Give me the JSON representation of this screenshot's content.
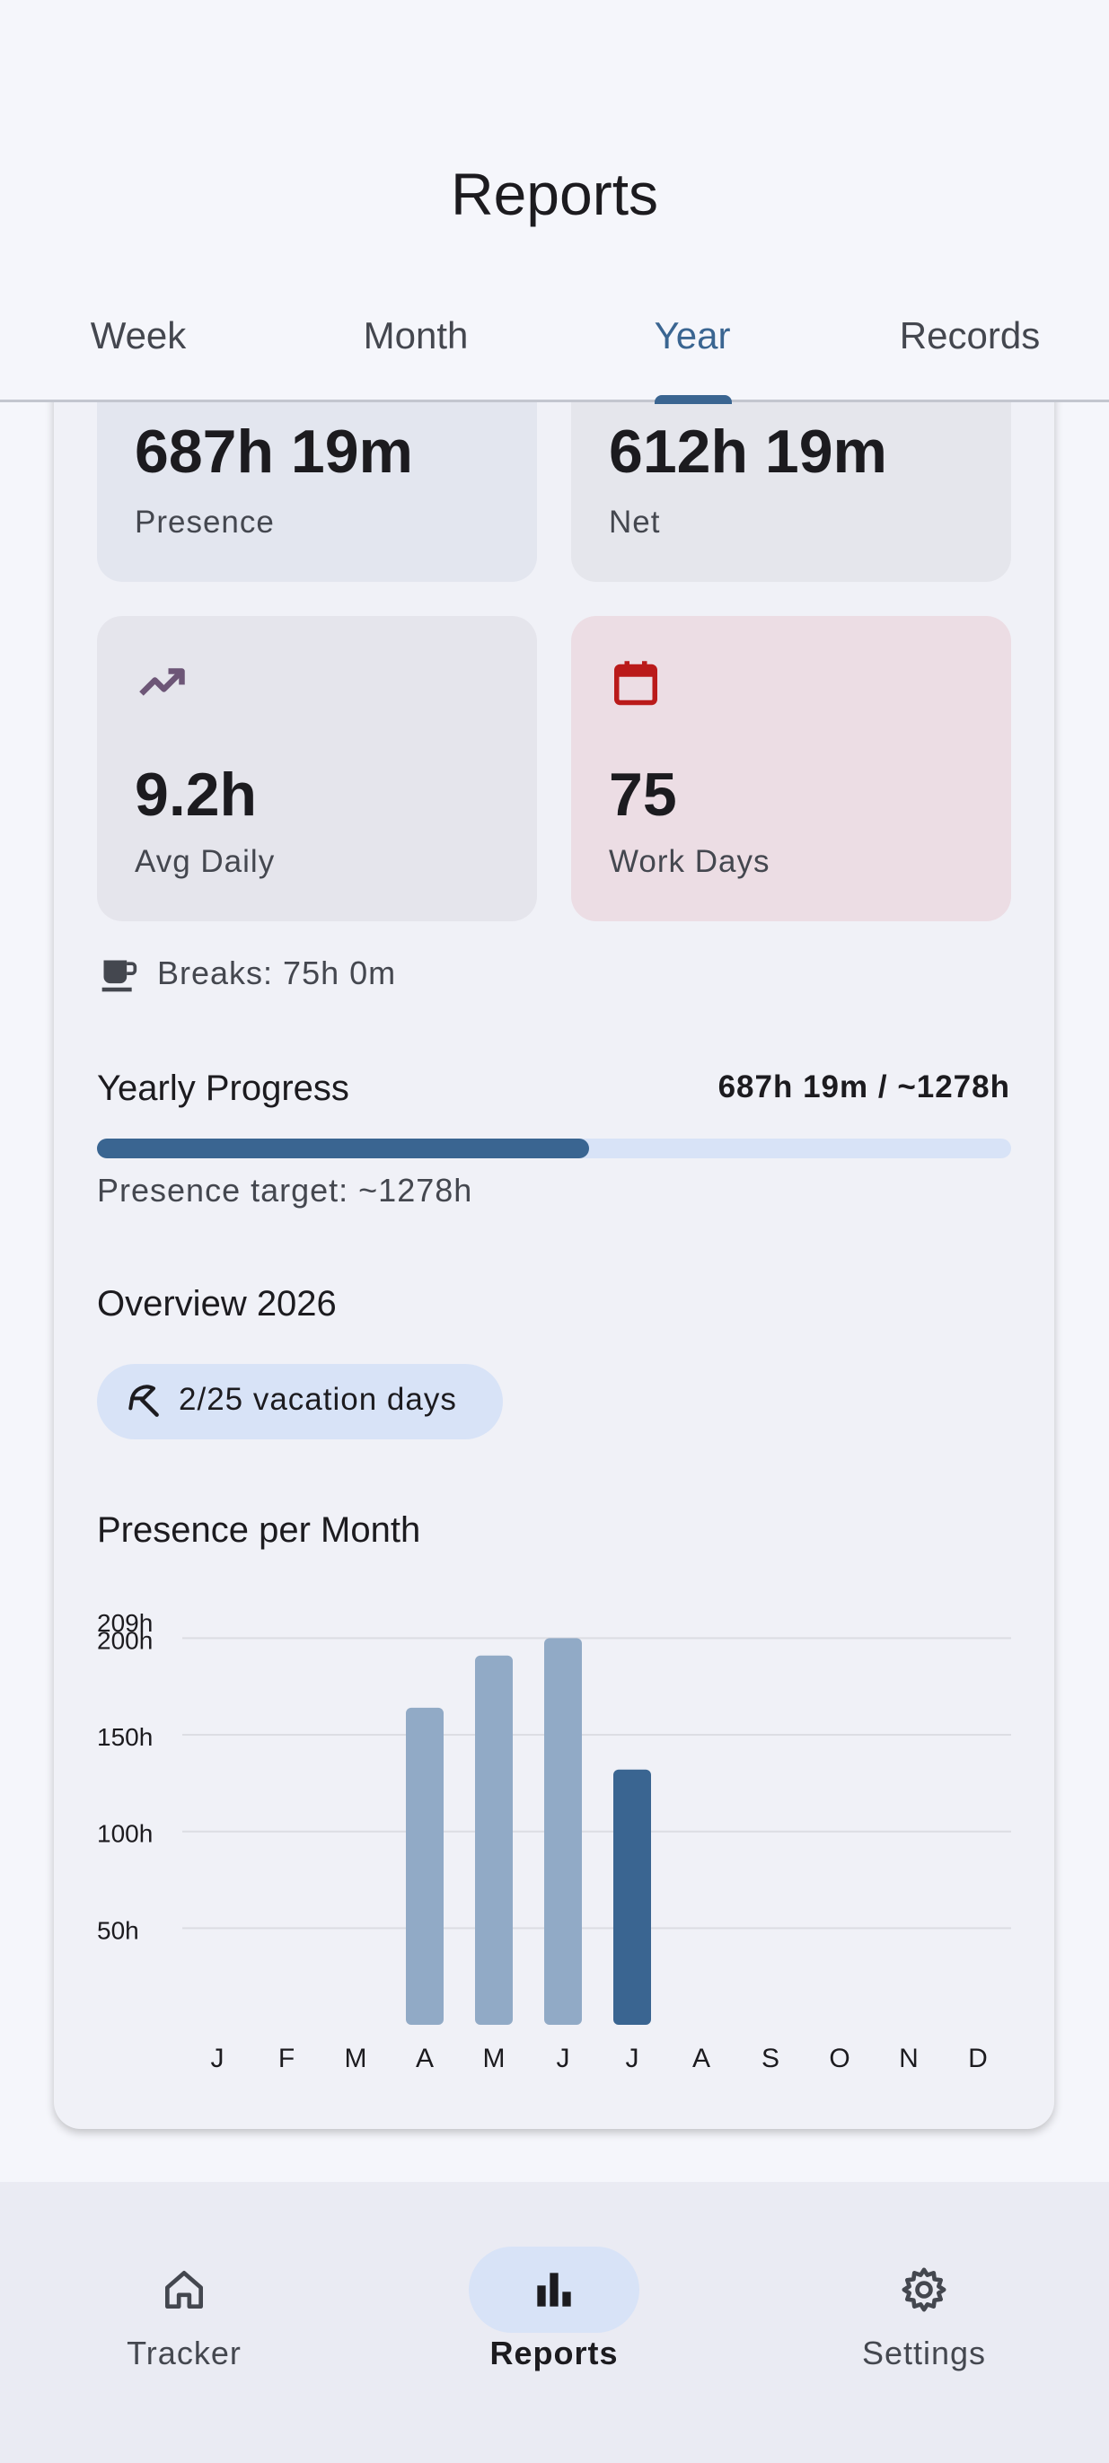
{
  "header": {
    "title": "Reports"
  },
  "tabs": [
    {
      "label": "Week",
      "active": false
    },
    {
      "label": "Month",
      "active": false
    },
    {
      "label": "Year",
      "active": true
    },
    {
      "label": "Records",
      "active": false
    }
  ],
  "stats": {
    "presence": {
      "value": "687h 19m",
      "label": "Presence"
    },
    "net": {
      "value": "612h 19m",
      "label": "Net"
    },
    "avg_daily": {
      "value": "9.2h",
      "label": "Avg Daily",
      "icon": "trending-up-icon"
    },
    "work_days": {
      "value": "75",
      "label": "Work Days",
      "icon": "calendar-icon"
    }
  },
  "breaks": {
    "text": "Breaks: 75h 0m",
    "icon": "coffee-icon"
  },
  "yearly_progress": {
    "title": "Yearly Progress",
    "value_text": "687h 19m / ~1278h",
    "fraction": 0.538,
    "target_text": "Presence target: ~1278h"
  },
  "overview": {
    "title": "Overview 2026",
    "vacation_chip": "2/25 vacation days",
    "vacation_icon": "beach-umbrella-icon"
  },
  "presence_chart": {
    "title": "Presence per Month"
  },
  "chart_data": {
    "type": "bar",
    "title": "Presence per Month",
    "categories": [
      "J",
      "F",
      "M",
      "A",
      "M",
      "J",
      "J",
      "A",
      "S",
      "O",
      "N",
      "D"
    ],
    "values": [
      0,
      0,
      0,
      164,
      191,
      200,
      132,
      0,
      0,
      0,
      0,
      0
    ],
    "current_index": 6,
    "y_ticks": [
      "50h",
      "100h",
      "150h",
      "200h",
      "209h"
    ],
    "ylim": [
      0,
      209
    ],
    "grid": true,
    "colors": {
      "past": "#91aac6",
      "current": "#3a6591"
    }
  },
  "bottom_nav": [
    {
      "label": "Tracker",
      "icon": "home-icon",
      "active": false
    },
    {
      "label": "Reports",
      "icon": "bar-chart-icon",
      "active": true
    },
    {
      "label": "Settings",
      "icon": "gear-icon",
      "active": false
    }
  ],
  "colors": {
    "accent": "#3a6591",
    "calendar_red": "#ba1a1a",
    "trend_purple": "#6d5677"
  }
}
